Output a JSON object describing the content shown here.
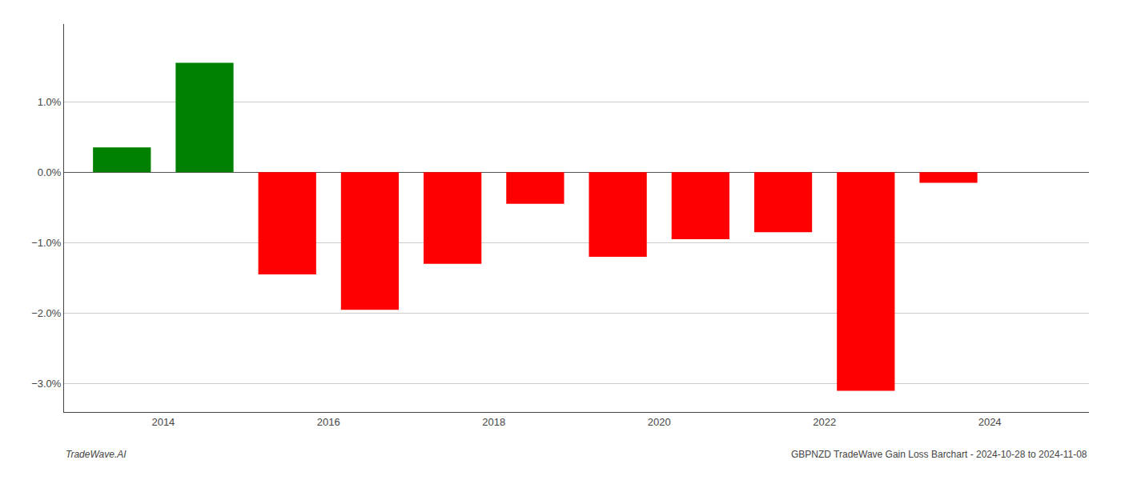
{
  "chart_data": {
    "type": "bar",
    "x": [
      2013.5,
      2014.5,
      2015.5,
      2016.5,
      2017.5,
      2018.5,
      2019.5,
      2020.5,
      2021.5,
      2022.5,
      2023.5
    ],
    "values": [
      0.0035,
      0.0155,
      -0.0145,
      -0.0195,
      -0.013,
      -0.0045,
      -0.012,
      -0.0095,
      -0.0085,
      -0.031,
      -0.0015
    ],
    "colors": [
      "#008000",
      "#008000",
      "#ff0000",
      "#ff0000",
      "#ff0000",
      "#ff0000",
      "#ff0000",
      "#ff0000",
      "#ff0000",
      "#ff0000",
      "#ff0000"
    ],
    "xlim": [
      2012.8,
      2025.2
    ],
    "xticks": [
      2014,
      2016,
      2018,
      2020,
      2022,
      2024
    ],
    "ylim": [
      -0.034,
      0.021
    ],
    "yticks": [
      {
        "value": -0.03,
        "label": "−3.0%"
      },
      {
        "value": -0.02,
        "label": "−2.0%"
      },
      {
        "value": -0.01,
        "label": "−1.0%"
      },
      {
        "value": 0.0,
        "label": "0.0%"
      },
      {
        "value": 0.01,
        "label": "1.0%"
      }
    ],
    "grid": true,
    "annotations": [
      "TradeWave.AI",
      "GBPNZD TradeWave Gain Loss Barchart - 2024-10-28 to 2024-11-08"
    ]
  }
}
